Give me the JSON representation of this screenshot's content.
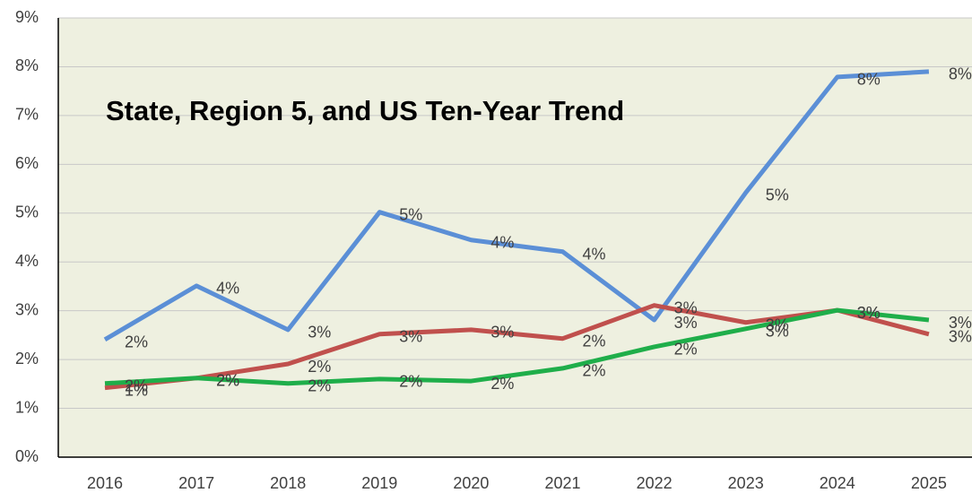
{
  "chart_data": {
    "type": "line",
    "title": "State, Region 5, and US Ten-Year Trend",
    "categories": [
      "2016",
      "2017",
      "2018",
      "2019",
      "2020",
      "2021",
      "2022",
      "2023",
      "2024",
      "2025"
    ],
    "series": [
      {
        "color": "#5b8fd6",
        "values": [
          2.41,
          3.51,
          2.61,
          5.02,
          4.45,
          4.21,
          2.81,
          5.42,
          7.79,
          7.9
        ],
        "value_labels": [
          "2%",
          "4%",
          "3%",
          "5%",
          "4%",
          "4%",
          "3%",
          "5%",
          "8%",
          "8%"
        ]
      },
      {
        "color": "#c0504d",
        "values": [
          1.42,
          1.62,
          1.91,
          2.52,
          2.61,
          2.43,
          3.11,
          2.76,
          3.01,
          2.52
        ],
        "value_labels": [
          "1%",
          "2%",
          "2%",
          "3%",
          "3%",
          "2%",
          "3%",
          "3%",
          "3%",
          "3%"
        ]
      },
      {
        "color": "#1fae4a",
        "values": [
          1.51,
          1.62,
          1.51,
          1.6,
          1.56,
          1.82,
          2.26,
          2.63,
          3.01,
          2.81
        ],
        "value_labels": [
          "2%",
          "2%",
          "2%",
          "2%",
          "2%",
          "2%",
          "2%",
          "3%",
          "3%",
          "3%"
        ]
      }
    ],
    "ylim": [
      0,
      9
    ],
    "yticks": [
      {
        "value": 0,
        "label": "0%"
      },
      {
        "value": 1,
        "label": "1%"
      },
      {
        "value": 2,
        "label": "2%"
      },
      {
        "value": 3,
        "label": "3%"
      },
      {
        "value": 4,
        "label": "4%"
      },
      {
        "value": 5,
        "label": "5%"
      },
      {
        "value": 6,
        "label": "6%"
      },
      {
        "value": 7,
        "label": "7%"
      },
      {
        "value": 8,
        "label": "8%"
      },
      {
        "value": 9,
        "label": "9%"
      }
    ],
    "grid": true
  }
}
